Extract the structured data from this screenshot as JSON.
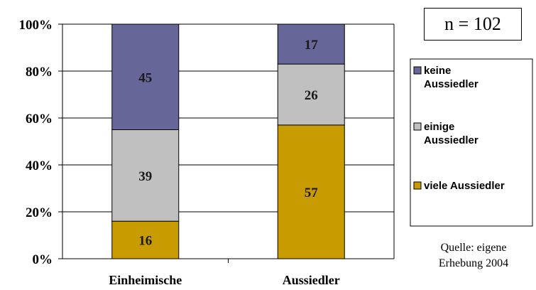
{
  "chart_data": {
    "type": "bar",
    "stacked": true,
    "categories": [
      "Einheimische",
      "Aussiedler"
    ],
    "series": [
      {
        "name": "viele Aussiedler",
        "values": [
          16,
          57
        ],
        "color": "#c89b00"
      },
      {
        "name": "einige Aussiedler",
        "values": [
          39,
          26
        ],
        "color": "#c0c0c0"
      },
      {
        "name": "keine Aussiedler",
        "values": [
          45,
          17
        ],
        "color": "#666699"
      }
    ],
    "y_ticks": [
      "0%",
      "20%",
      "40%",
      "60%",
      "80%",
      "100%"
    ],
    "ylim": [
      0,
      100
    ],
    "grid": true,
    "legend_position": "right"
  },
  "sample_size": "n = 102",
  "source": {
    "line1": "Quelle: eigene",
    "line2": "Erhebung 2004"
  }
}
